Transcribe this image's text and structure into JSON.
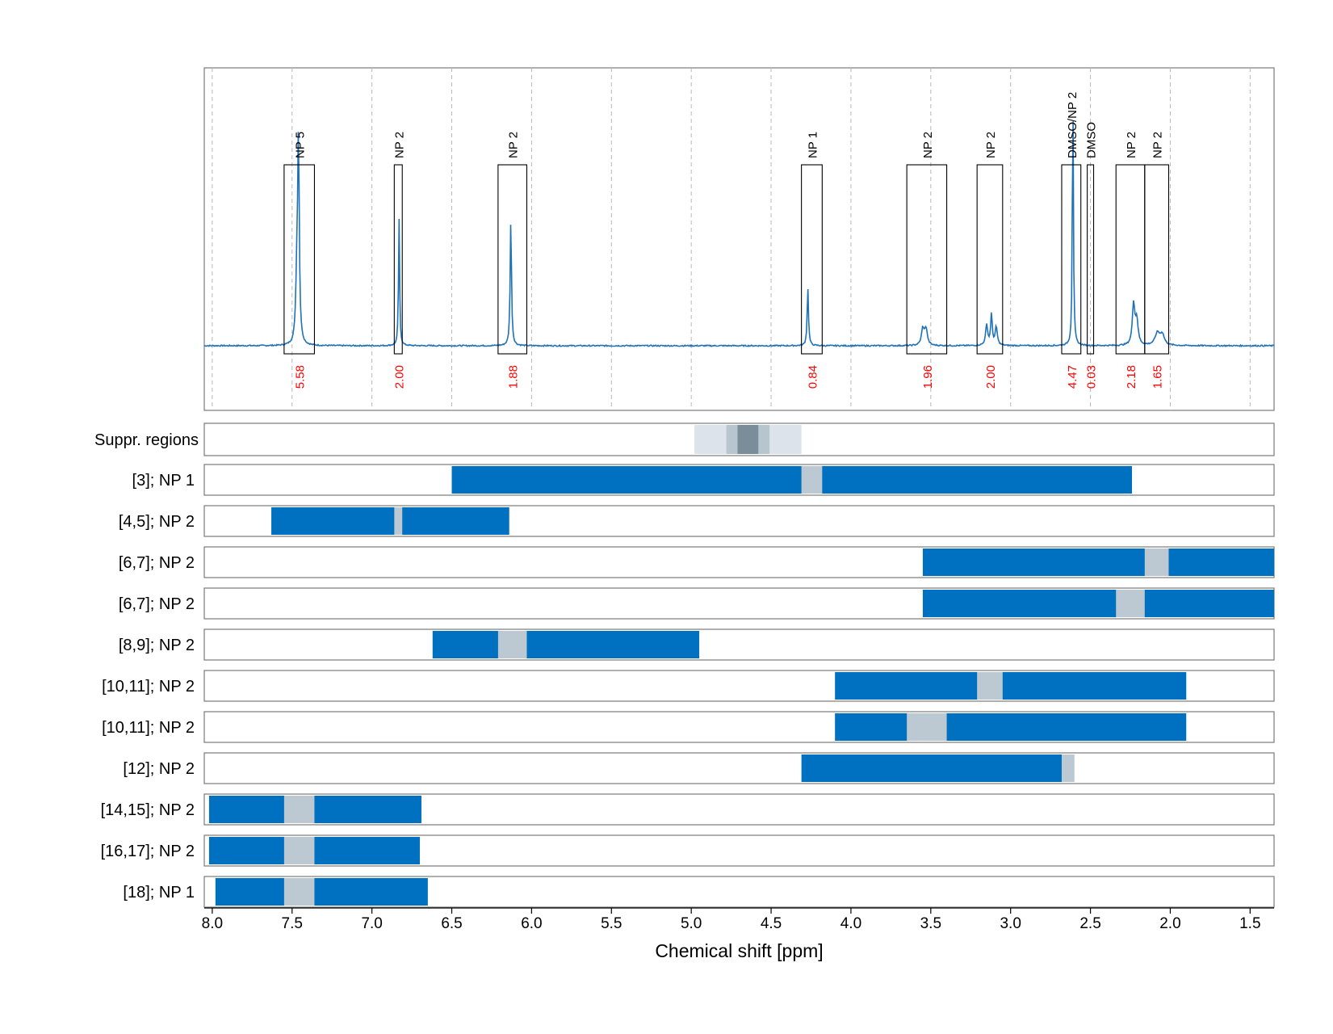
{
  "chart_data": {
    "type": "nmr-spectrum-with-ranges",
    "xlabel": "Chemical shift [ppm]",
    "xlim": [
      8.05,
      1.35
    ],
    "x_ticks": [
      8.0,
      7.5,
      7.0,
      6.5,
      6.0,
      5.5,
      5.0,
      4.5,
      4.0,
      3.5,
      3.0,
      2.5,
      2.0,
      1.5
    ],
    "x_tick_labels": [
      "8.0",
      "7.5",
      "7.0",
      "6.5",
      "6.0",
      "5.5",
      "5.0",
      "4.5",
      "4.0",
      "3.5",
      "3.0",
      "2.5",
      "2.0",
      "1.5"
    ],
    "grid": true,
    "spectrum": {
      "baseline": 0.0,
      "peaks": [
        {
          "center": 7.46,
          "height": 0.95,
          "width": 0.006
        },
        {
          "center": 7.47,
          "height": 0.3,
          "width": 0.008
        },
        {
          "center": 6.83,
          "height": 0.62,
          "width": 0.004
        },
        {
          "center": 6.13,
          "height": 0.61,
          "width": 0.005
        },
        {
          "center": 4.27,
          "height": 0.28,
          "width": 0.005
        },
        {
          "center": 3.55,
          "height": 0.08,
          "width": 0.01
        },
        {
          "center": 3.53,
          "height": 0.08,
          "width": 0.01
        },
        {
          "center": 3.15,
          "height": 0.1,
          "width": 0.008
        },
        {
          "center": 3.12,
          "height": 0.15,
          "width": 0.006
        },
        {
          "center": 3.09,
          "height": 0.09,
          "width": 0.008
        },
        {
          "center": 2.61,
          "height": 1.22,
          "width": 0.004
        },
        {
          "center": 2.23,
          "height": 0.2,
          "width": 0.009
        },
        {
          "center": 2.21,
          "height": 0.12,
          "width": 0.01
        },
        {
          "center": 2.08,
          "height": 0.06,
          "width": 0.018
        },
        {
          "center": 2.05,
          "height": 0.05,
          "width": 0.015
        }
      ]
    },
    "integration_boxes": [
      {
        "label": "NP 5",
        "x_start": 7.55,
        "x_end": 7.36,
        "integral": "5.58"
      },
      {
        "label": "NP 2",
        "x_start": 6.86,
        "x_end": 6.81,
        "integral": "2.00"
      },
      {
        "label": "NP 2",
        "x_start": 6.21,
        "x_end": 6.03,
        "integral": "1.88"
      },
      {
        "label": "NP 1",
        "x_start": 4.31,
        "x_end": 4.18,
        "integral": "0.84"
      },
      {
        "label": "NP 2",
        "x_start": 3.65,
        "x_end": 3.4,
        "integral": "1.96"
      },
      {
        "label": "NP 2",
        "x_start": 3.21,
        "x_end": 3.05,
        "integral": "2.00"
      },
      {
        "label": "DMSO/NP 2",
        "x_start": 2.68,
        "x_end": 2.56,
        "integral": "4.47"
      },
      {
        "label": "DMSO",
        "x_start": 2.52,
        "x_end": 2.48,
        "integral": "0.03"
      },
      {
        "label": "NP 2",
        "x_start": 2.34,
        "x_end": 2.16,
        "integral": "2.18"
      },
      {
        "label": "NP 2",
        "x_start": 2.16,
        "x_end": 2.01,
        "integral": "1.65"
      }
    ],
    "suppression": {
      "label": "Suppr. regions",
      "segments": [
        {
          "x_start": 4.98,
          "x_end": 4.31,
          "level": 1
        },
        {
          "x_start": 4.78,
          "x_end": 4.51,
          "level": 2
        },
        {
          "x_start": 4.71,
          "x_end": 4.58,
          "level": 3
        }
      ]
    },
    "range_rows": [
      {
        "label": "[3]; NP 1",
        "bar": [
          6.5,
          2.24
        ],
        "gap": [
          4.31,
          4.18
        ]
      },
      {
        "label": "[4,5]; NP 2",
        "bar": [
          7.63,
          6.14
        ],
        "gap": [
          6.86,
          6.81
        ]
      },
      {
        "label": "[6,7]; NP 2",
        "bar": [
          3.55,
          1.35
        ],
        "gap": [
          2.16,
          2.01
        ]
      },
      {
        "label": "[6,7]; NP 2",
        "bar": [
          3.55,
          1.35
        ],
        "gap": [
          2.34,
          2.16
        ]
      },
      {
        "label": "[8,9]; NP 2",
        "bar": [
          6.62,
          4.95
        ],
        "gap": [
          6.21,
          6.03
        ]
      },
      {
        "label": "[10,11]; NP 2",
        "bar": [
          4.1,
          1.9
        ],
        "gap": [
          3.21,
          3.05
        ]
      },
      {
        "label": "[10,11]; NP 2",
        "bar": [
          4.1,
          1.9
        ],
        "gap": [
          3.65,
          3.4
        ]
      },
      {
        "label": "[12]; NP 2",
        "bar": [
          4.31,
          2.68
        ],
        "gap": [
          2.68,
          2.6
        ]
      },
      {
        "label": "[14,15]; NP 2",
        "bar": [
          8.02,
          6.69
        ],
        "gap": [
          7.55,
          7.36
        ]
      },
      {
        "label": "[16,17]; NP 2",
        "bar": [
          8.02,
          6.7
        ],
        "gap": [
          7.55,
          7.36
        ]
      },
      {
        "label": "[18]; NP 1",
        "bar": [
          7.98,
          6.65
        ],
        "gap": [
          7.55,
          7.36
        ]
      }
    ],
    "colors": {
      "spectrum": "#1f72b8",
      "bar": "#0070c0",
      "gap": "#bcc9d2",
      "suppr_light": "#dce3ea",
      "suppr_mid": "#b7c5cf",
      "suppr_dark": "#7b8d99",
      "integral_text": "#ff0000",
      "grid": "#b8b8b8",
      "frame": "#7a7a7a"
    }
  }
}
